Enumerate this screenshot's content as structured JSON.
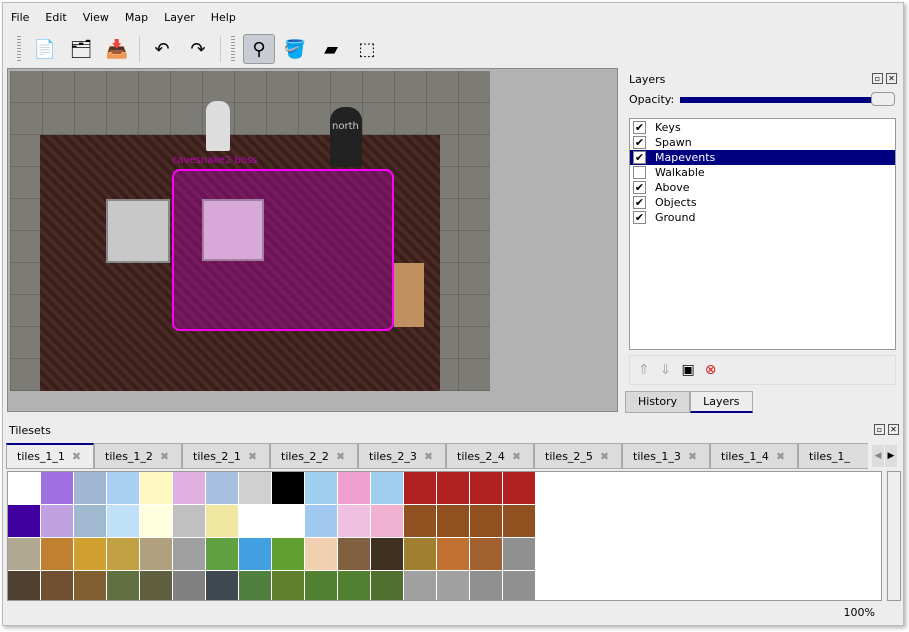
{
  "menu": [
    "File",
    "Edit",
    "View",
    "Map",
    "Layer",
    "Help"
  ],
  "toolbar": [
    {
      "name": "new-icon",
      "glyph": "📄"
    },
    {
      "name": "open-icon",
      "glyph": "🗂"
    },
    {
      "name": "save-icon",
      "glyph": "📥"
    },
    {
      "name": "undo-icon",
      "glyph": "↶"
    },
    {
      "name": "redo-icon",
      "glyph": "↷"
    },
    {
      "name": "stamp-brush-icon",
      "glyph": "⚲",
      "active": true
    },
    {
      "name": "bucket-fill-icon",
      "glyph": "🪣"
    },
    {
      "name": "eraser-icon",
      "glyph": "▰"
    },
    {
      "name": "rect-select-icon",
      "glyph": "⬚"
    }
  ],
  "map": {
    "labels": {
      "boss": "cavesnake2 boss",
      "north": "north"
    }
  },
  "layers_panel": {
    "title": "Layers",
    "opacity_label": "Opacity:",
    "opacity": 100,
    "layers": [
      {
        "name": "Keys",
        "visible": true
      },
      {
        "name": "Spawn",
        "visible": true
      },
      {
        "name": "Mapevents",
        "visible": true,
        "selected": true
      },
      {
        "name": "Walkable",
        "visible": false
      },
      {
        "name": "Above",
        "visible": true
      },
      {
        "name": "Objects",
        "visible": true
      },
      {
        "name": "Ground",
        "visible": true
      }
    ],
    "tabs": [
      "History",
      "Layers"
    ],
    "active_tab": "Layers"
  },
  "tilesets": {
    "title": "Tilesets",
    "tabs": [
      "tiles_1_1",
      "tiles_1_2",
      "tiles_2_1",
      "tiles_2_2",
      "tiles_2_3",
      "tiles_2_4",
      "tiles_2_5",
      "tiles_1_3",
      "tiles_1_4",
      "tiles_1_"
    ],
    "active": "tiles_1_1",
    "colors": [
      "#ffffff",
      "#a070e0",
      "#9fb7d0",
      "#a8d0f0",
      "#fff8c0",
      "#e0b0e0",
      "#a8c0e0",
      "#d0d0d0",
      "#000000",
      "#a0d0f0",
      "#f0a0d0",
      "#a0d0f0",
      "#b02020",
      "#b02020",
      "#b02020",
      "#b02020",
      "#4000a0",
      "#c0a0e0",
      "#a0b8d0",
      "#c0e0f8",
      "#ffffe0",
      "#c0c0c0",
      "#f0e8a0",
      "#ffffff",
      "#ffffff",
      "#a0c8f0",
      "#f0c0e0",
      "#f0b0d0",
      "#905020",
      "#905020",
      "#905020",
      "#905020",
      "#b0a890",
      "#c08030",
      "#d0a030",
      "#c0a040",
      "#b0a080",
      "#a0a0a0",
      "#60a040",
      "#40a0e0",
      "#60a030",
      "#f0d0b0",
      "#806040",
      "#403020",
      "#a08030",
      "#c07030",
      "#a06030",
      "#909090",
      "#504030",
      "#705030",
      "#806030",
      "#607040",
      "#606040",
      "#808080",
      "#404850",
      "#508040",
      "#608030",
      "#508030",
      "#508030",
      "#507030",
      "#a0a0a0",
      "#a0a0a0",
      "#909090",
      "#909090"
    ]
  },
  "status": {
    "zoom": "100%"
  }
}
